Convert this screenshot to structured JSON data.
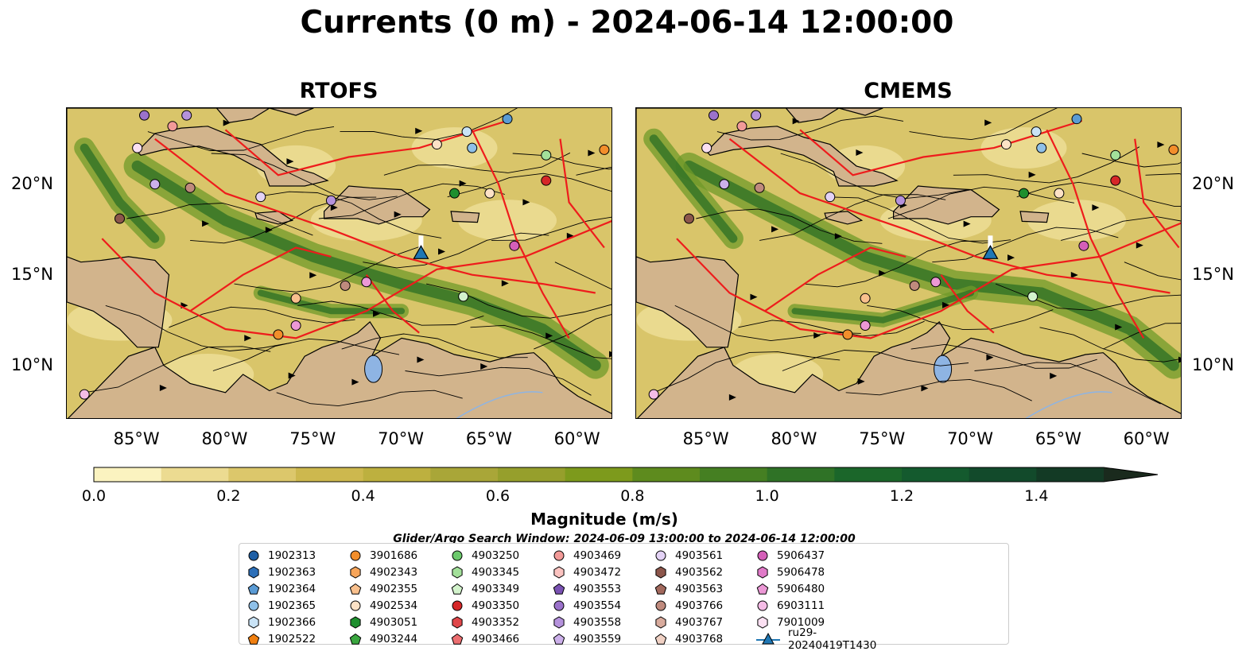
{
  "title": "Currents (0 m) - 2024-06-14 12:00:00",
  "panels": [
    {
      "title": "RTOFS"
    },
    {
      "title": "CMEMS"
    }
  ],
  "axes": {
    "x_ticks": [
      "85°W",
      "80°W",
      "75°W",
      "70°W",
      "65°W",
      "60°W"
    ],
    "x_values": [
      -85,
      -80,
      -75,
      -70,
      -65,
      -60
    ],
    "y_ticks": [
      "20°N",
      "15°N",
      "10°N"
    ],
    "y_values": [
      20,
      15,
      10
    ],
    "lon_range": [
      -89,
      -58
    ],
    "lat_range": [
      7,
      24.2
    ]
  },
  "colorbar": {
    "label": "Magnitude (m/s)",
    "ticks": [
      "0.0",
      "0.2",
      "0.4",
      "0.6",
      "0.8",
      "1.0",
      "1.2",
      "1.4"
    ],
    "tick_values": [
      0.0,
      0.2,
      0.4,
      0.6,
      0.8,
      1.0,
      1.2,
      1.4
    ],
    "min": 0.0,
    "max": 1.5,
    "extend": "max",
    "colors": [
      "#fbf3c0",
      "#ecdb91",
      "#dcc76b",
      "#cdb84e",
      "#bdb03f",
      "#a9a638",
      "#969f2c",
      "#7d9a1c",
      "#5e8b1e",
      "#457f22",
      "#2f7226",
      "#1b662a",
      "#145a2e",
      "#124a2b",
      "#133a25",
      "#1a2a1d"
    ]
  },
  "search_window": "Glider/Argo Search Window: 2024-06-09 13:00:00 to 2024-06-14 12:00:00",
  "legend": [
    {
      "label": "1902313",
      "marker": "circle",
      "color": "#1f5fa5"
    },
    {
      "label": "1902363",
      "marker": "hexagon",
      "color": "#2c6fb8"
    },
    {
      "label": "1902364",
      "marker": "pentagon",
      "color": "#5a9bd5"
    },
    {
      "label": "1902365",
      "marker": "circle",
      "color": "#8fc0e8"
    },
    {
      "label": "1902366",
      "marker": "hexagon",
      "color": "#c9e3f6"
    },
    {
      "label": "1902522",
      "marker": "pentagon",
      "color": "#f07f10"
    },
    {
      "label": "3901686",
      "marker": "circle",
      "color": "#f28e2b"
    },
    {
      "label": "4902343",
      "marker": "hexagon",
      "color": "#f7a55a"
    },
    {
      "label": "4902355",
      "marker": "pentagon",
      "color": "#f9c08d"
    },
    {
      "label": "4902534",
      "marker": "circle",
      "color": "#fde2c6"
    },
    {
      "label": "4903051",
      "marker": "hexagon",
      "color": "#1e8f2e"
    },
    {
      "label": "4903244",
      "marker": "pentagon",
      "color": "#3aa63f"
    },
    {
      "label": "4903250",
      "marker": "circle",
      "color": "#6cc96c"
    },
    {
      "label": "4903345",
      "marker": "hexagon",
      "color": "#a3e09a"
    },
    {
      "label": "4903349",
      "marker": "pentagon",
      "color": "#d3f3cc"
    },
    {
      "label": "4903350",
      "marker": "circle",
      "color": "#d62728"
    },
    {
      "label": "4903352",
      "marker": "hexagon",
      "color": "#e0474a"
    },
    {
      "label": "4903466",
      "marker": "pentagon",
      "color": "#ec6e70"
    },
    {
      "label": "4903469",
      "marker": "circle",
      "color": "#f29a98"
    },
    {
      "label": "4903472",
      "marker": "hexagon",
      "color": "#fbc3c0"
    },
    {
      "label": "4903553",
      "marker": "pentagon",
      "color": "#7a52b3"
    },
    {
      "label": "4903554",
      "marker": "circle",
      "color": "#9b72cb"
    },
    {
      "label": "4903558",
      "marker": "hexagon",
      "color": "#b592dc"
    },
    {
      "label": "4903559",
      "marker": "pentagon",
      "color": "#ccb0ea"
    },
    {
      "label": "4903561",
      "marker": "circle",
      "color": "#e3d2f5"
    },
    {
      "label": "4903562",
      "marker": "hexagon",
      "color": "#8c564b"
    },
    {
      "label": "4903563",
      "marker": "pentagon",
      "color": "#a2695d"
    },
    {
      "label": "4903766",
      "marker": "circle",
      "color": "#bf8a7d"
    },
    {
      "label": "4903767",
      "marker": "hexagon",
      "color": "#d8ab9d"
    },
    {
      "label": "4903768",
      "marker": "pentagon",
      "color": "#f0d1c4"
    },
    {
      "label": "5906437",
      "marker": "circle",
      "color": "#d45fb8"
    },
    {
      "label": "5906478",
      "marker": "hexagon",
      "color": "#e07ac8"
    },
    {
      "label": "5906480",
      "marker": "pentagon",
      "color": "#ec98d6"
    },
    {
      "label": "6903111",
      "marker": "circle",
      "color": "#f5bce6"
    },
    {
      "label": "7901009",
      "marker": "hexagon",
      "color": "#fbe0f2"
    },
    {
      "label": "ru29-20240419T1430",
      "marker": "triangle-line",
      "color": "#1f77b4"
    }
  ]
}
